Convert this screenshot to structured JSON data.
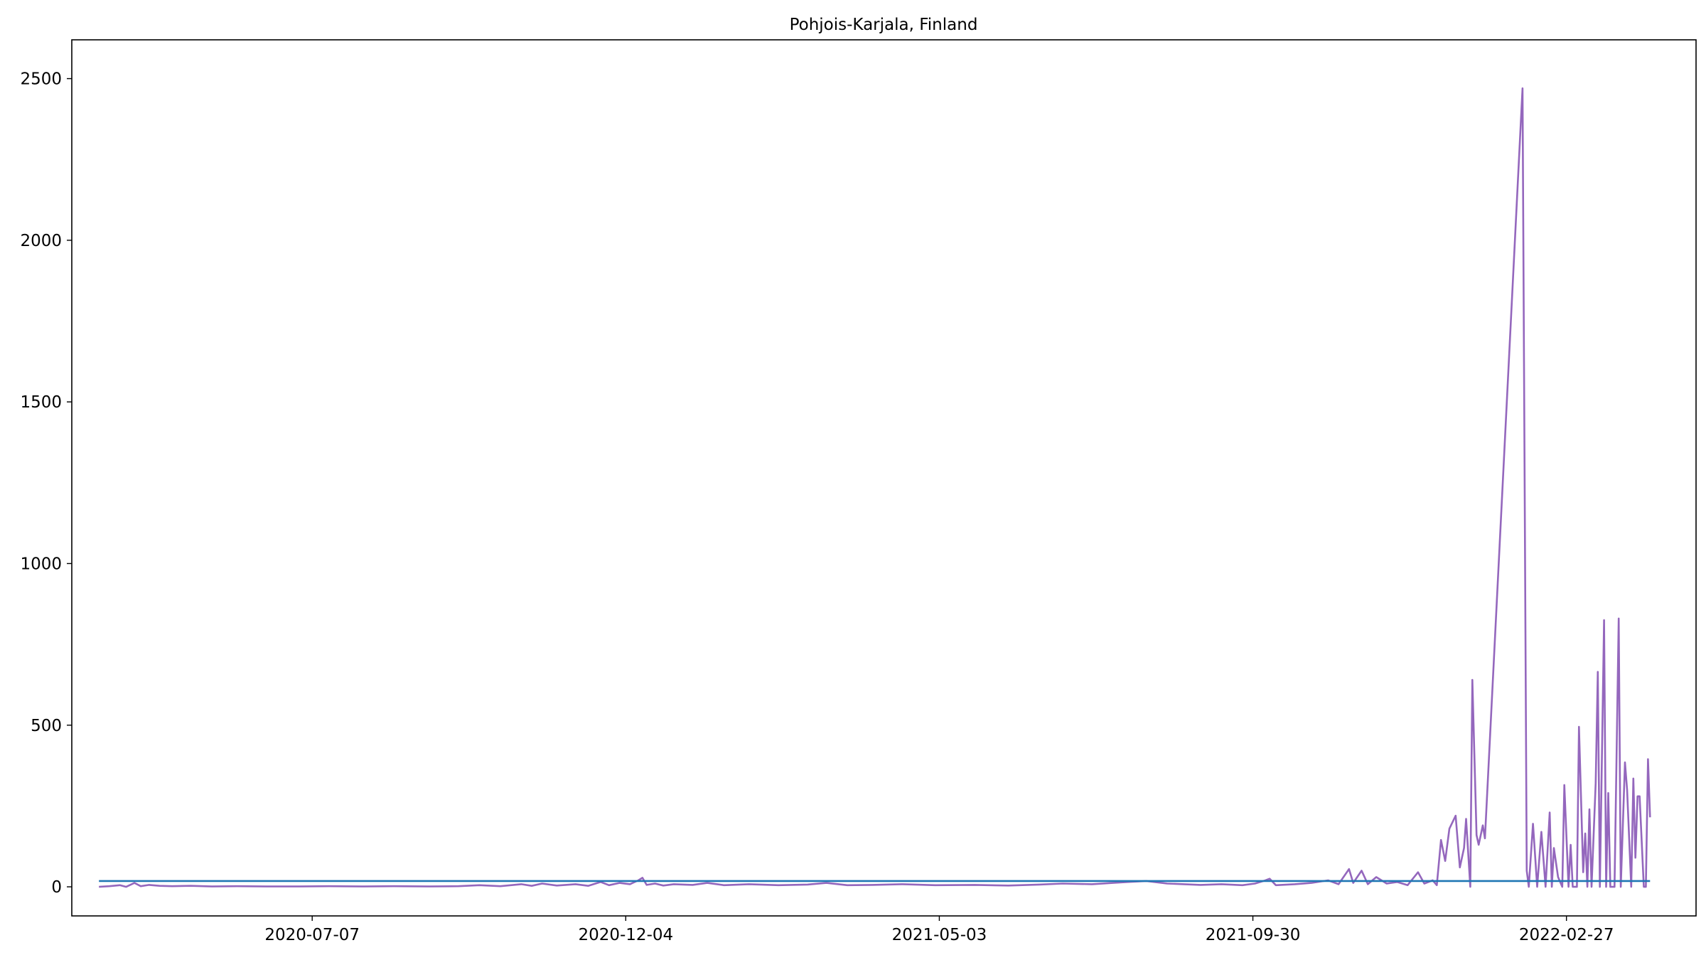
{
  "chart_data": {
    "type": "line",
    "title": "Pohjois-Karjala, Finland",
    "xlabel": "",
    "ylabel": "",
    "ylim": [
      -90,
      2620
    ],
    "xlim": [
      "2020-03-14",
      "2022-04-30"
    ],
    "grid": false,
    "x_ticks": [
      "2020-07-07",
      "2020-12-04",
      "2021-05-03",
      "2021-09-30",
      "2022-02-27"
    ],
    "y_ticks": [
      0,
      500,
      1000,
      1500,
      2000,
      2500
    ],
    "series": [
      {
        "color": "#9467bd",
        "points": [
          [
            "2020-03-27",
            0
          ],
          [
            "2020-04-01",
            2
          ],
          [
            "2020-04-06",
            5
          ],
          [
            "2020-04-09",
            0
          ],
          [
            "2020-04-13",
            12
          ],
          [
            "2020-04-16",
            2
          ],
          [
            "2020-04-20",
            6
          ],
          [
            "2020-04-25",
            3
          ],
          [
            "2020-05-01",
            2
          ],
          [
            "2020-05-10",
            3
          ],
          [
            "2020-05-20",
            1
          ],
          [
            "2020-06-01",
            2
          ],
          [
            "2020-06-15",
            1
          ],
          [
            "2020-07-01",
            1
          ],
          [
            "2020-07-15",
            2
          ],
          [
            "2020-08-01",
            1
          ],
          [
            "2020-08-15",
            2
          ],
          [
            "2020-09-01",
            1
          ],
          [
            "2020-09-15",
            2
          ],
          [
            "2020-09-25",
            5
          ],
          [
            "2020-10-05",
            2
          ],
          [
            "2020-10-15",
            8
          ],
          [
            "2020-10-20",
            3
          ],
          [
            "2020-10-25",
            10
          ],
          [
            "2020-11-01",
            4
          ],
          [
            "2020-11-10",
            8
          ],
          [
            "2020-11-16",
            3
          ],
          [
            "2020-11-22",
            15
          ],
          [
            "2020-11-26",
            5
          ],
          [
            "2020-12-01",
            12
          ],
          [
            "2020-12-06",
            8
          ],
          [
            "2020-12-10",
            20
          ],
          [
            "2020-12-12",
            28
          ],
          [
            "2020-12-14",
            6
          ],
          [
            "2020-12-18",
            10
          ],
          [
            "2020-12-22",
            4
          ],
          [
            "2020-12-27",
            8
          ],
          [
            "2021-01-05",
            6
          ],
          [
            "2021-01-12",
            12
          ],
          [
            "2021-01-20",
            5
          ],
          [
            "2021-02-01",
            8
          ],
          [
            "2021-02-15",
            5
          ],
          [
            "2021-03-01",
            7
          ],
          [
            "2021-03-10",
            12
          ],
          [
            "2021-03-20",
            5
          ],
          [
            "2021-04-01",
            6
          ],
          [
            "2021-04-15",
            8
          ],
          [
            "2021-05-01",
            5
          ],
          [
            "2021-05-20",
            6
          ],
          [
            "2021-06-05",
            4
          ],
          [
            "2021-06-20",
            7
          ],
          [
            "2021-07-01",
            10
          ],
          [
            "2021-07-15",
            8
          ],
          [
            "2021-07-25",
            12
          ],
          [
            "2021-08-01",
            15
          ],
          [
            "2021-08-10",
            18
          ],
          [
            "2021-08-20",
            10
          ],
          [
            "2021-08-28",
            8
          ],
          [
            "2021-09-05",
            6
          ],
          [
            "2021-09-15",
            8
          ],
          [
            "2021-09-25",
            5
          ],
          [
            "2021-10-01",
            10
          ],
          [
            "2021-10-06",
            20
          ],
          [
            "2021-10-08",
            25
          ],
          [
            "2021-10-11",
            5
          ],
          [
            "2021-10-20",
            8
          ],
          [
            "2021-10-28",
            12
          ],
          [
            "2021-11-05",
            20
          ],
          [
            "2021-11-10",
            8
          ],
          [
            "2021-11-15",
            55
          ],
          [
            "2021-11-17",
            12
          ],
          [
            "2021-11-21",
            50
          ],
          [
            "2021-11-24",
            8
          ],
          [
            "2021-11-28",
            30
          ],
          [
            "2021-12-03",
            10
          ],
          [
            "2021-12-08",
            15
          ],
          [
            "2021-12-13",
            5
          ],
          [
            "2021-12-18",
            45
          ],
          [
            "2021-12-21",
            10
          ],
          [
            "2021-12-25",
            20
          ],
          [
            "2021-12-27",
            5
          ],
          [
            "2021-12-29",
            145
          ],
          [
            "2021-12-31",
            80
          ],
          [
            "2022-01-02",
            180
          ],
          [
            "2022-01-05",
            220
          ],
          [
            "2022-01-07",
            60
          ],
          [
            "2022-01-09",
            120
          ],
          [
            "2022-01-10",
            210
          ],
          [
            "2022-01-12",
            0
          ],
          [
            "2022-01-13",
            640
          ],
          [
            "2022-01-15",
            160
          ],
          [
            "2022-01-16",
            130
          ],
          [
            "2022-01-18",
            190
          ],
          [
            "2022-01-19",
            150
          ],
          [
            "2022-02-06",
            2470
          ],
          [
            "2022-02-08",
            50
          ],
          [
            "2022-02-09",
            0
          ],
          [
            "2022-02-11",
            195
          ],
          [
            "2022-02-13",
            0
          ],
          [
            "2022-02-15",
            170
          ],
          [
            "2022-02-17",
            0
          ],
          [
            "2022-02-19",
            230
          ],
          [
            "2022-02-20",
            0
          ],
          [
            "2022-02-21",
            120
          ],
          [
            "2022-02-23",
            30
          ],
          [
            "2022-02-25",
            0
          ],
          [
            "2022-02-26",
            315
          ],
          [
            "2022-02-28",
            0
          ],
          [
            "2022-03-01",
            130
          ],
          [
            "2022-03-02",
            0
          ],
          [
            "2022-03-04",
            0
          ],
          [
            "2022-03-05",
            495
          ],
          [
            "2022-03-07",
            45
          ],
          [
            "2022-03-08",
            165
          ],
          [
            "2022-03-09",
            0
          ],
          [
            "2022-03-10",
            240
          ],
          [
            "2022-03-11",
            0
          ],
          [
            "2022-03-13",
            320
          ],
          [
            "2022-03-14",
            665
          ],
          [
            "2022-03-15",
            0
          ],
          [
            "2022-03-17",
            825
          ],
          [
            "2022-03-18",
            0
          ],
          [
            "2022-03-19",
            290
          ],
          [
            "2022-03-20",
            0
          ],
          [
            "2022-03-22",
            0
          ],
          [
            "2022-03-24",
            830
          ],
          [
            "2022-03-25",
            0
          ],
          [
            "2022-03-27",
            385
          ],
          [
            "2022-03-28",
            300
          ],
          [
            "2022-03-30",
            0
          ],
          [
            "2022-03-31",
            335
          ],
          [
            "2022-04-01",
            90
          ],
          [
            "2022-04-02",
            280
          ],
          [
            "2022-04-03",
            280
          ],
          [
            "2022-04-05",
            0
          ],
          [
            "2022-04-06",
            0
          ],
          [
            "2022-04-07",
            395
          ],
          [
            "2022-04-08",
            215
          ]
        ]
      },
      {
        "color": "#1f77b4",
        "points": [
          [
            "2020-03-27",
            18
          ],
          [
            "2022-04-08",
            18
          ]
        ]
      }
    ]
  }
}
